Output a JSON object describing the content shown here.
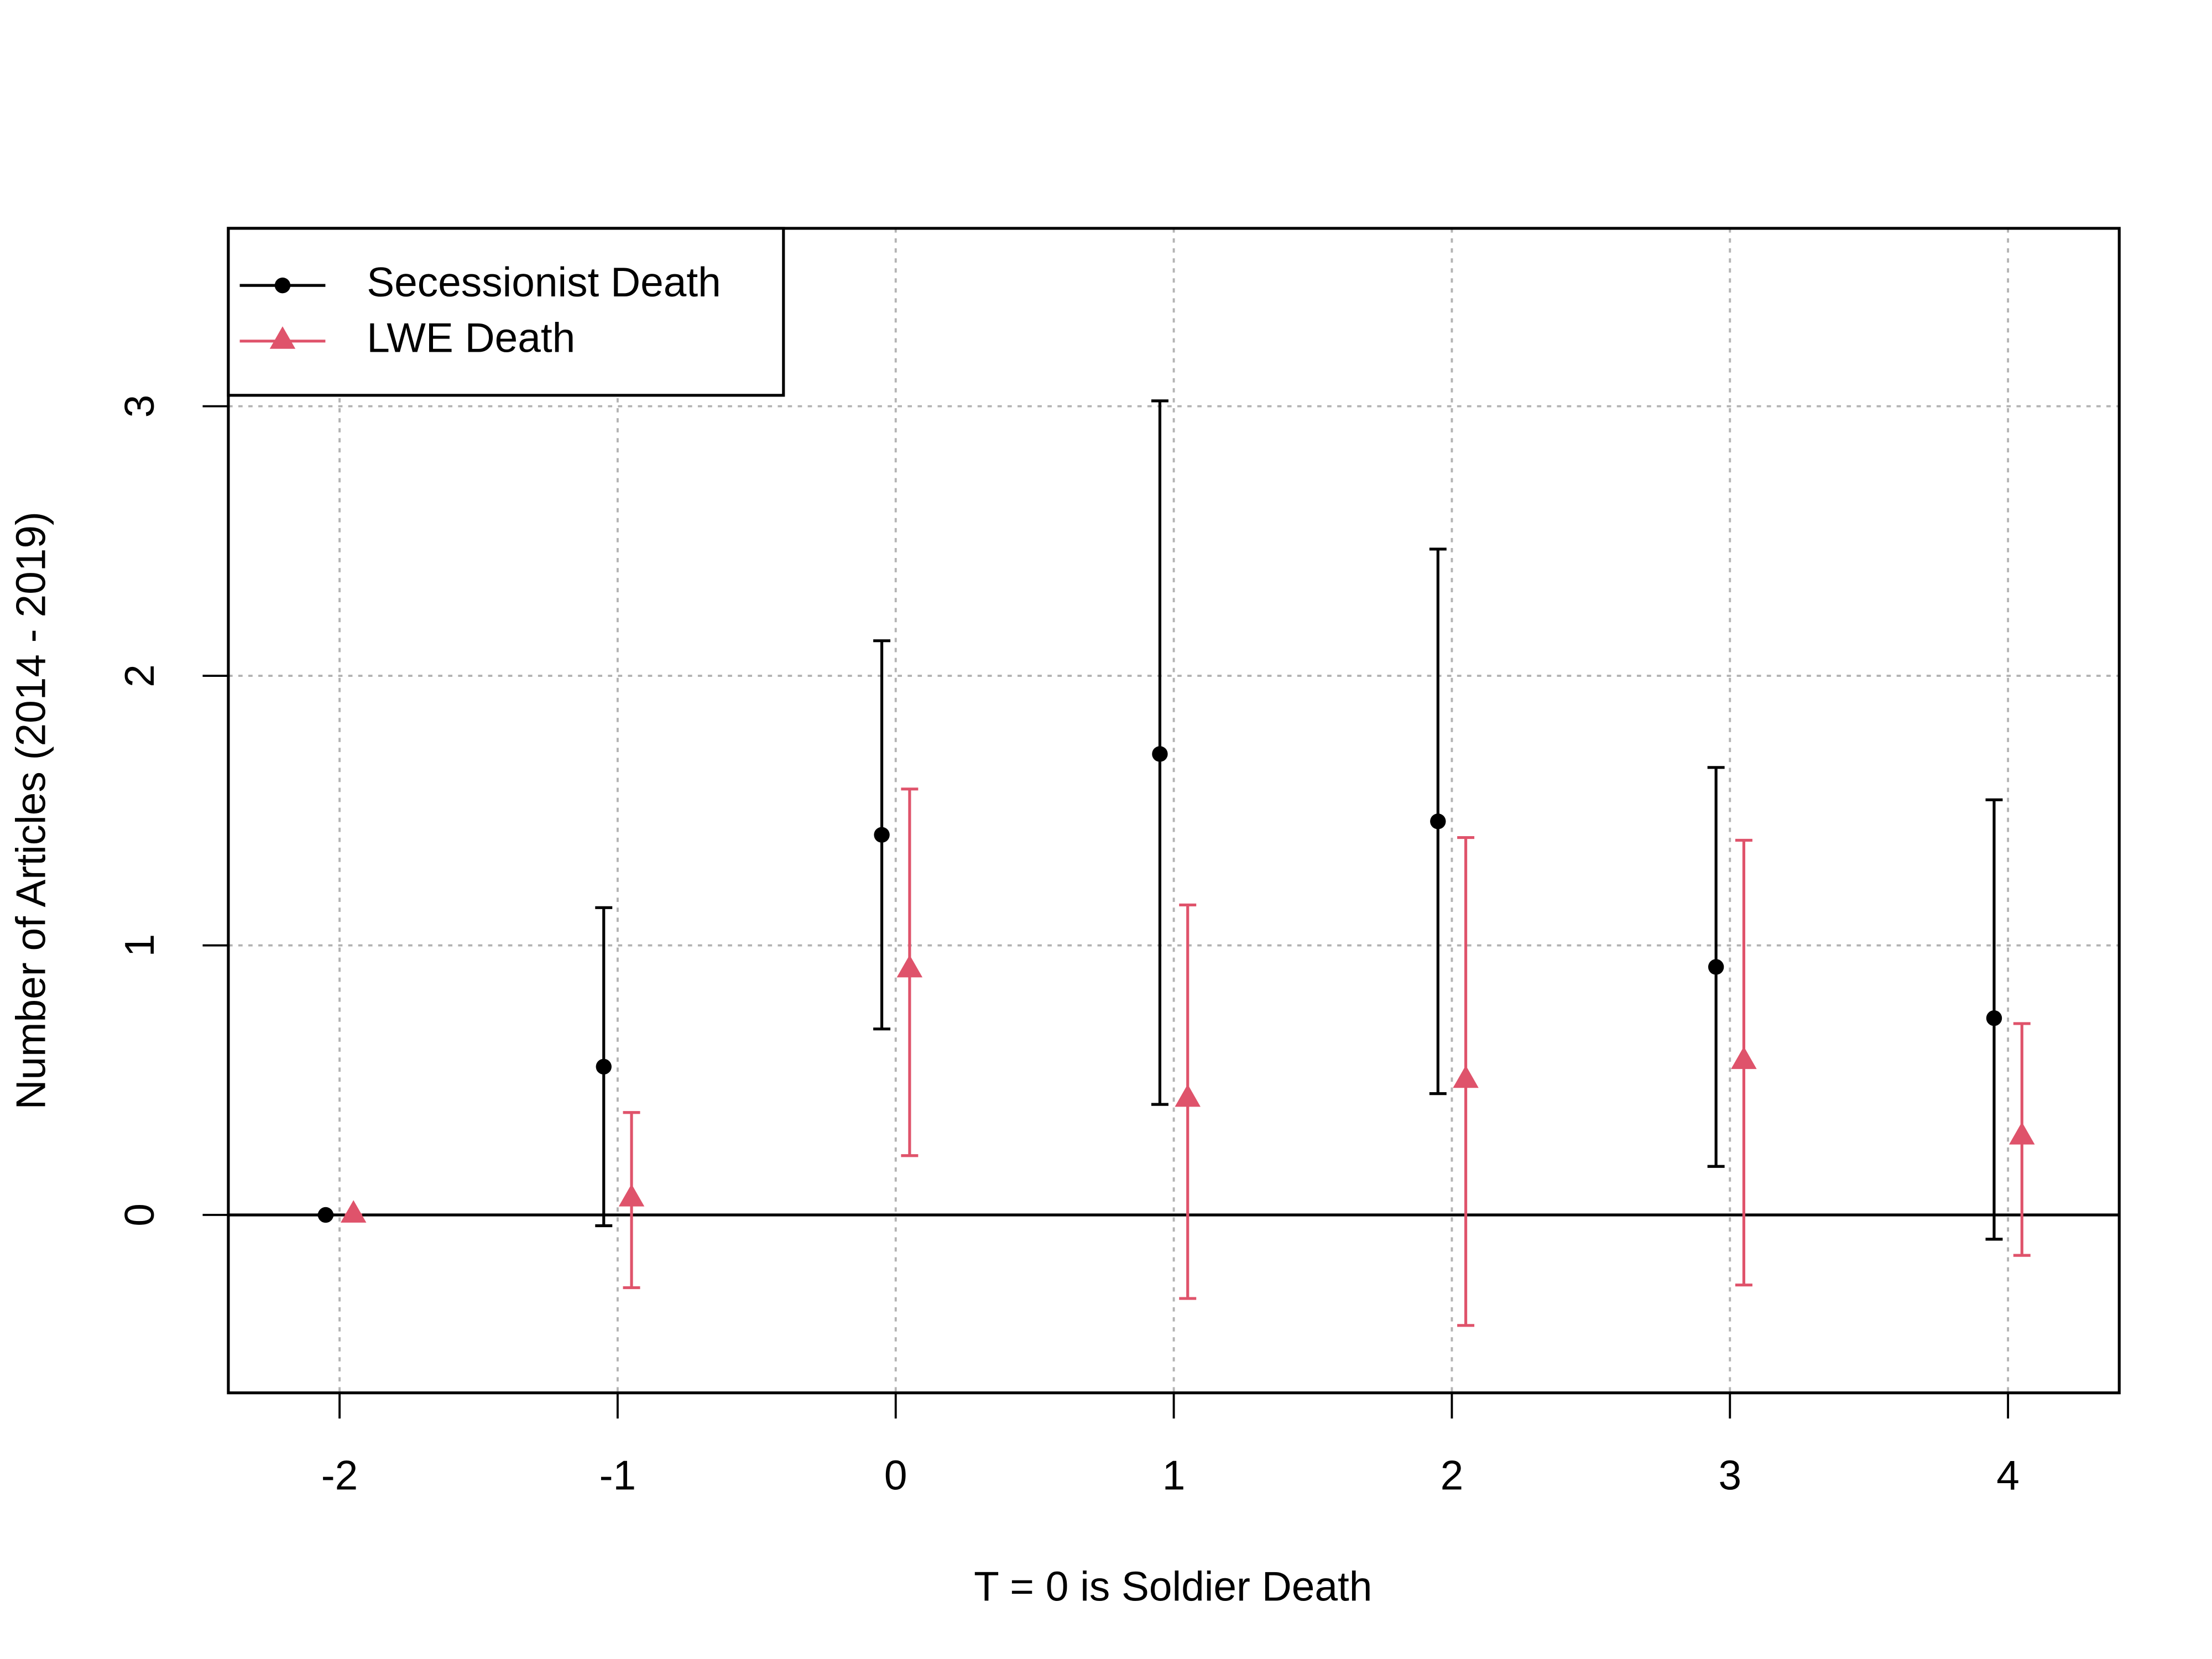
{
  "chart_data": {
    "type": "scatter",
    "x_label": "T = 0 is Soldier Death",
    "y_label": "Number of Articles (2014 - 2019)",
    "x": [
      -2,
      -1,
      0,
      1,
      2,
      3,
      4
    ],
    "series": [
      {
        "name": "Secessionist Death",
        "color": "#000000",
        "marker": "circle",
        "values": [
          0,
          0.55,
          1.41,
          1.71,
          1.46,
          0.92,
          0.73
        ],
        "lower": [
          0,
          -0.04,
          0.69,
          0.41,
          0.45,
          0.18,
          -0.09
        ],
        "upper": [
          0,
          1.14,
          2.13,
          3.02,
          2.47,
          1.66,
          1.54
        ]
      },
      {
        "name": "LWE Death",
        "color": "#df536b",
        "marker": "triangle",
        "values": [
          0,
          0.06,
          0.91,
          0.43,
          0.5,
          0.57,
          0.29
        ],
        "lower": [
          0,
          -0.27,
          0.22,
          -0.31,
          -0.41,
          -0.26,
          -0.15
        ],
        "upper": [
          0,
          0.38,
          1.58,
          1.15,
          1.4,
          1.39,
          0.71
        ]
      }
    ],
    "xlim": [
      -2.4,
      4.4
    ],
    "ylim": [
      -0.66,
      3.66
    ],
    "xticks": [
      -2,
      -1,
      0,
      1,
      2,
      3,
      4
    ],
    "yticks": [
      0,
      1,
      2,
      3
    ],
    "grid": true,
    "legend": "top-left"
  }
}
